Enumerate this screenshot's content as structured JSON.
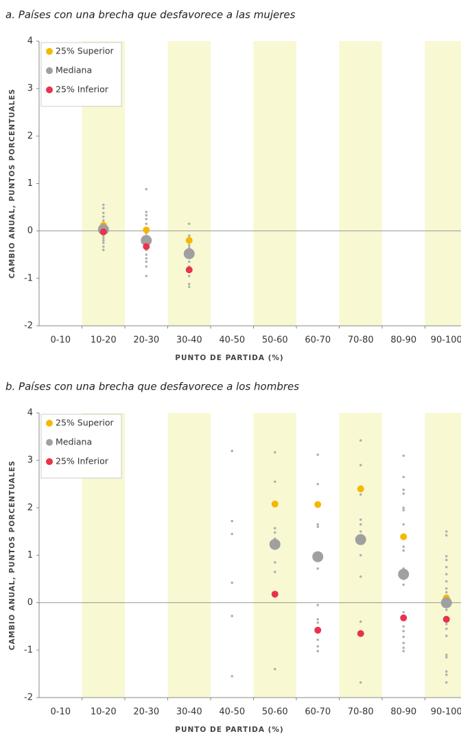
{
  "chart_data": [
    {
      "type": "dot",
      "title": "a. Países con una brecha que desfavorece a las mujeres",
      "x_label": "PUNTO DE PARTIDA (%)",
      "y_label": "CAMBIO ANUAL, PUNTOS PORCENTUALES",
      "categories": [
        "0-10",
        "10-20",
        "20-30",
        "30-40",
        "40-50",
        "50-60",
        "60-70",
        "70-80",
        "80-90",
        "90-100"
      ],
      "ylim": [
        -2,
        4
      ],
      "yticks": [
        -2,
        -1,
        0,
        1,
        2,
        3,
        4
      ],
      "legend": "upper left",
      "series": [
        {
          "name": "25% Superior",
          "color": "#f5b800",
          "values": [
            null,
            0.12,
            0.02,
            -0.2,
            null,
            null,
            null,
            null,
            null,
            null
          ]
        },
        {
          "name": "Mediana",
          "color": "#a0a0a0",
          "values": [
            null,
            0.03,
            -0.2,
            -0.48,
            null,
            null,
            null,
            null,
            null,
            null
          ]
        },
        {
          "name": "25% Inferior",
          "color": "#e8334a",
          "values": [
            null,
            -0.02,
            -0.33,
            -0.82,
            null,
            null,
            null,
            null,
            null,
            null
          ]
        }
      ],
      "dots_color": "#b0b0b0",
      "dots": [
        [],
        [
          0.55,
          0.48,
          0.38,
          0.3,
          0.22,
          0.15,
          0.1,
          0.05,
          0,
          -0.05,
          -0.1,
          -0.15,
          -0.2,
          -0.25,
          -0.33,
          -0.4
        ],
        [
          0.88,
          0.4,
          0.33,
          0.25,
          0.15,
          0.05,
          -0.05,
          -0.15,
          -0.3,
          -0.4,
          -0.5,
          -0.58,
          -0.65,
          -0.75,
          -0.95
        ],
        [
          0.15,
          -0.1,
          -0.15,
          -0.3,
          -0.35,
          -0.65,
          -0.75,
          -0.95,
          -1.12,
          -1.18
        ],
        [],
        [],
        [],
        [],
        [],
        []
      ]
    },
    {
      "type": "dot",
      "title": "b. Países con una brecha que desfavorece a los hombres",
      "x_label": "PUNTO DE PARTIDA (%)",
      "y_label": "CAMBIO ANUAL, PUNTOS PORCENTUALES",
      "categories": [
        "0-10",
        "10-20",
        "20-30",
        "30-40",
        "40-50",
        "50-60",
        "60-70",
        "70-80",
        "80-90",
        "90-100"
      ],
      "ylim": [
        -2,
        4
      ],
      "yticks": [
        -2,
        -1,
        0,
        1,
        2,
        3,
        4
      ],
      "legend": "upper left",
      "series": [
        {
          "name": "25% Superior",
          "color": "#f5b800",
          "values": [
            null,
            null,
            null,
            null,
            null,
            2.08,
            2.07,
            2.4,
            1.39,
            0.1
          ]
        },
        {
          "name": "Mediana",
          "color": "#a0a0a0",
          "values": [
            null,
            null,
            null,
            null,
            null,
            1.23,
            0.97,
            1.33,
            0.6,
            0.0
          ]
        },
        {
          "name": "25% Inferior",
          "color": "#e8334a",
          "values": [
            null,
            null,
            null,
            null,
            null,
            0.18,
            -0.58,
            -0.65,
            -0.32,
            -0.35
          ]
        }
      ],
      "dots_color": "#b0b0b0",
      "dots": [
        [],
        [],
        [],
        [],
        [
          3.2,
          1.72,
          1.45,
          0.42,
          -0.28,
          -1.55
        ],
        [
          3.17,
          2.55,
          1.57,
          1.48,
          1.35,
          0.85,
          0.65,
          -1.4
        ],
        [
          3.12,
          2.5,
          1.65,
          1.6,
          0.72,
          -0.05,
          -0.35,
          -0.42,
          -0.78,
          -0.92,
          -1.02
        ],
        [
          3.42,
          2.9,
          2.28,
          1.75,
          1.65,
          1.5,
          1.42,
          1.0,
          0.55,
          -0.4,
          -1.68
        ],
        [
          3.1,
          2.65,
          2.38,
          2.3,
          2.0,
          1.95,
          1.65,
          1.18,
          1.1,
          0.72,
          0.5,
          0.38,
          -0.2,
          -0.5,
          -0.6,
          -0.72,
          -0.85,
          -0.95,
          -1.02
        ],
        [
          1.5,
          1.42,
          0.98,
          0.9,
          0.75,
          0.6,
          0.45,
          0.3,
          0.22,
          0.15,
          -0.05,
          -0.15,
          -0.3,
          -0.45,
          -0.55,
          -0.7,
          -1.1,
          -1.15,
          -1.45,
          -1.52,
          -1.68
        ]
      ]
    }
  ]
}
